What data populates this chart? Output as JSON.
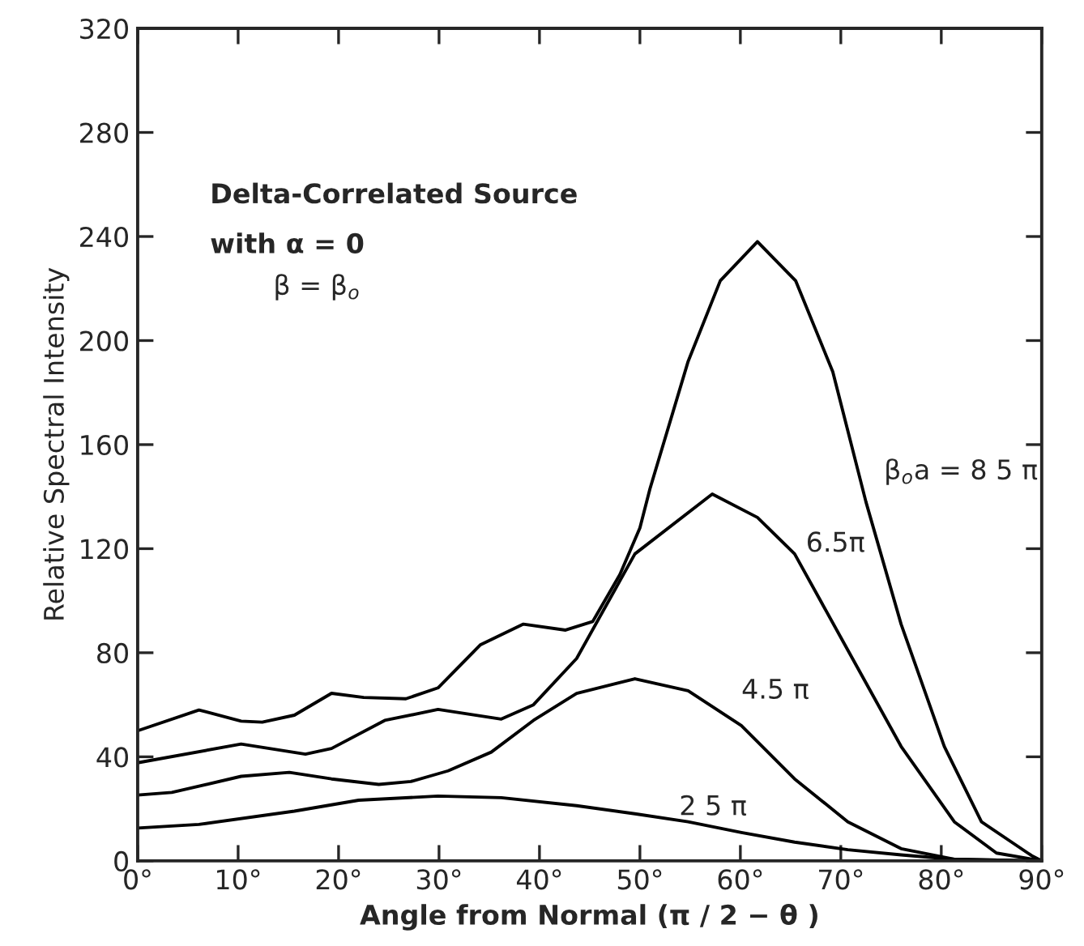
{
  "chart_data": {
    "type": "line",
    "xlabel": "Angle from Normal (π / 2 − θ )",
    "ylabel": "Relative Spectral Intensity",
    "annotations": [
      "Delta-Correlated Source",
      "with α = 0",
      "β = β$_{o}$"
    ],
    "xlim": [
      0,
      90
    ],
    "ylim": [
      0,
      320
    ],
    "xticks": [
      {
        "value": 0,
        "label": "0°"
      },
      {
        "value": 10,
        "label": "10°"
      },
      {
        "value": 20,
        "label": "20°"
      },
      {
        "value": 30,
        "label": "30°"
      },
      {
        "value": 40,
        "label": "40°"
      },
      {
        "value": 50,
        "label": "50°"
      },
      {
        "value": 60,
        "label": "60°"
      },
      {
        "value": 70,
        "label": "70°"
      },
      {
        "value": 80,
        "label": "80°"
      },
      {
        "value": 90,
        "label": "90°"
      }
    ],
    "yticks": [
      0,
      40,
      80,
      120,
      160,
      200,
      240,
      280,
      320
    ],
    "grid": false,
    "legend": false,
    "marker": "none",
    "line_style": "solid",
    "series": [
      {
        "name": "β$_{o}$a = 8 5 π",
        "color": "#000000",
        "x": [
          0,
          6.1,
          10.3,
          12.4,
          15.6,
          19.3,
          22.5,
          26.7,
          29.9,
          34.1,
          38.4,
          42.6,
          45.3,
          48,
          50,
          51,
          54.8,
          58,
          61.7,
          65.5,
          69.2,
          72.5,
          76,
          80.3,
          84,
          89,
          90
        ],
        "values": [
          50,
          58,
          53.7,
          53.3,
          56,
          64.4,
          62.8,
          62.3,
          66.5,
          83,
          91,
          88.7,
          92,
          110,
          128,
          143,
          192,
          223,
          238,
          223,
          188,
          138,
          91,
          44,
          15,
          2,
          0
        ]
      },
      {
        "name": "6.5π",
        "color": "#000000",
        "x": [
          0,
          10.3,
          16.7,
          19.3,
          24.6,
          29.9,
          36.2,
          39.4,
          43.7,
          49.5,
          57.2,
          61.7,
          65.4,
          70.7,
          76,
          81.3,
          85.5,
          90
        ],
        "values": [
          37.7,
          44.9,
          41,
          43.2,
          54,
          58.2,
          54.5,
          60,
          77.8,
          118,
          141,
          132,
          118,
          81,
          44,
          15,
          3,
          0
        ]
      },
      {
        "name": "4.5 π",
        "color": "#000000",
        "x": [
          0,
          3.4,
          10.3,
          15.1,
          19.3,
          24,
          27.2,
          30.9,
          35.2,
          39.4,
          43.7,
          49.5,
          54.8,
          60.1,
          65.4,
          70.7,
          76,
          81.3,
          90
        ],
        "values": [
          25.3,
          26.3,
          32.5,
          34,
          31.5,
          29.4,
          30.5,
          34.6,
          41.8,
          54,
          64.4,
          70,
          65.4,
          52,
          31.5,
          15,
          4.7,
          0.6,
          0
        ]
      },
      {
        "name": "2 5 π",
        "color": "#000000",
        "x": [
          0,
          6.1,
          15.6,
          22,
          29.9,
          36.2,
          43.7,
          49.5,
          54.8,
          60.1,
          65.4,
          70.7,
          76,
          81.3,
          90
        ],
        "values": [
          12.6,
          14,
          19.1,
          23.3,
          24.9,
          24.3,
          21.2,
          18.1,
          15,
          10.9,
          7.2,
          4.3,
          2.3,
          0.6,
          0
        ]
      }
    ]
  }
}
